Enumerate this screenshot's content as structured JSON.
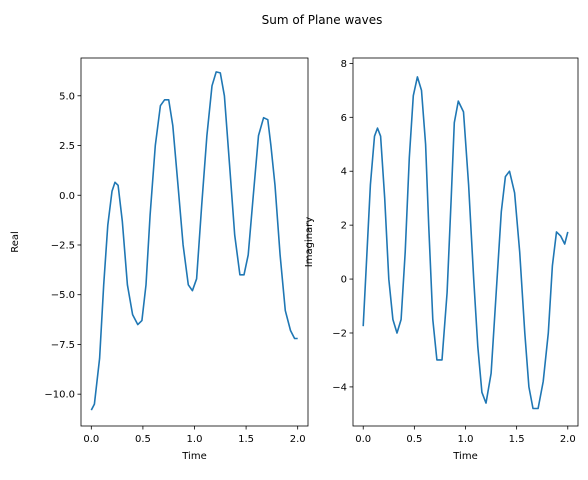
{
  "suptitle": "Sum of Plane waves",
  "colors": {
    "line": "#1f77b4",
    "axes": "#000000",
    "background": "#ffffff"
  },
  "chart_data": [
    {
      "type": "line",
      "title": "",
      "xlabel": "Time",
      "ylabel": "Real",
      "xlim": [
        -0.1,
        2.1
      ],
      "ylim": [
        -11.6,
        6.9
      ],
      "xticks": [
        0.0,
        0.5,
        1.0,
        1.5,
        2.0
      ],
      "xtick_labels": [
        "0.0",
        "0.5",
        "1.0",
        "1.5",
        "2.0"
      ],
      "yticks": [
        -10.0,
        -7.5,
        -5.0,
        -2.5,
        0.0,
        2.5,
        5.0
      ],
      "ytick_labels": [
        "−10.0",
        "−7.5",
        "−5.0",
        "−2.5",
        "0.0",
        "2.5",
        "5.0"
      ],
      "grid": false,
      "series": [
        {
          "x": [
            0.0,
            0.03,
            0.08,
            0.12,
            0.16,
            0.2,
            0.23,
            0.26,
            0.3,
            0.35,
            0.4,
            0.45,
            0.49,
            0.53,
            0.57,
            0.62,
            0.67,
            0.71,
            0.75,
            0.79,
            0.84,
            0.89,
            0.94,
            0.98,
            1.02,
            1.07,
            1.12,
            1.17,
            1.21,
            1.25,
            1.29,
            1.34,
            1.39,
            1.44,
            1.48,
            1.52,
            1.57,
            1.62,
            1.67,
            1.71,
            1.74,
            1.78,
            1.83,
            1.88,
            1.93,
            1.97,
            2.0
          ],
          "y": [
            -10.8,
            -10.5,
            -8.2,
            -4.5,
            -1.5,
            0.2,
            0.65,
            0.5,
            -1.3,
            -4.5,
            -6.0,
            -6.5,
            -6.3,
            -4.5,
            -1.0,
            2.5,
            4.5,
            4.8,
            4.8,
            3.5,
            0.5,
            -2.5,
            -4.5,
            -4.8,
            -4.2,
            -0.5,
            3.0,
            5.5,
            6.2,
            6.15,
            5.0,
            1.5,
            -2.0,
            -4.0,
            -4.0,
            -3.0,
            0.0,
            3.0,
            3.9,
            3.8,
            2.5,
            0.5,
            -3.0,
            -5.8,
            -6.8,
            -7.2,
            -7.2
          ]
        }
      ]
    },
    {
      "type": "line",
      "title": "",
      "xlabel": "Time",
      "ylabel": "Imaginary",
      "xlim": [
        -0.1,
        2.1
      ],
      "ylim": [
        -5.45,
        8.2
      ],
      "xticks": [
        0.0,
        0.5,
        1.0,
        1.5,
        2.0
      ],
      "xtick_labels": [
        "0.0",
        "0.5",
        "1.0",
        "1.5",
        "2.0"
      ],
      "yticks": [
        -4,
        -2,
        0,
        2,
        4,
        6,
        8
      ],
      "ytick_labels": [
        "−4",
        "−2",
        "0",
        "2",
        "4",
        "6",
        "8"
      ],
      "grid": false,
      "series": [
        {
          "x": [
            0.0,
            0.03,
            0.07,
            0.11,
            0.14,
            0.17,
            0.21,
            0.25,
            0.29,
            0.33,
            0.37,
            0.41,
            0.45,
            0.49,
            0.53,
            0.57,
            0.61,
            0.64,
            0.68,
            0.72,
            0.77,
            0.82,
            0.86,
            0.89,
            0.93,
            0.98,
            1.03,
            1.08,
            1.12,
            1.16,
            1.2,
            1.25,
            1.3,
            1.35,
            1.39,
            1.43,
            1.48,
            1.53,
            1.58,
            1.62,
            1.66,
            1.71,
            1.76,
            1.81,
            1.85,
            1.89,
            1.93,
            1.97,
            2.0
          ],
          "y": [
            -1.75,
            0.5,
            3.5,
            5.3,
            5.6,
            5.3,
            3.0,
            0.0,
            -1.5,
            -2.0,
            -1.5,
            1.0,
            4.5,
            6.8,
            7.5,
            7.0,
            5.0,
            2.0,
            -1.5,
            -3.0,
            -3.0,
            -0.5,
            3.0,
            5.8,
            6.6,
            6.2,
            3.5,
            0.0,
            -2.5,
            -4.2,
            -4.6,
            -3.5,
            -0.5,
            2.5,
            3.8,
            4.0,
            3.2,
            1.0,
            -2.0,
            -4.0,
            -4.8,
            -4.8,
            -3.8,
            -2.0,
            0.5,
            1.75,
            1.6,
            1.3,
            1.75
          ]
        }
      ]
    }
  ]
}
